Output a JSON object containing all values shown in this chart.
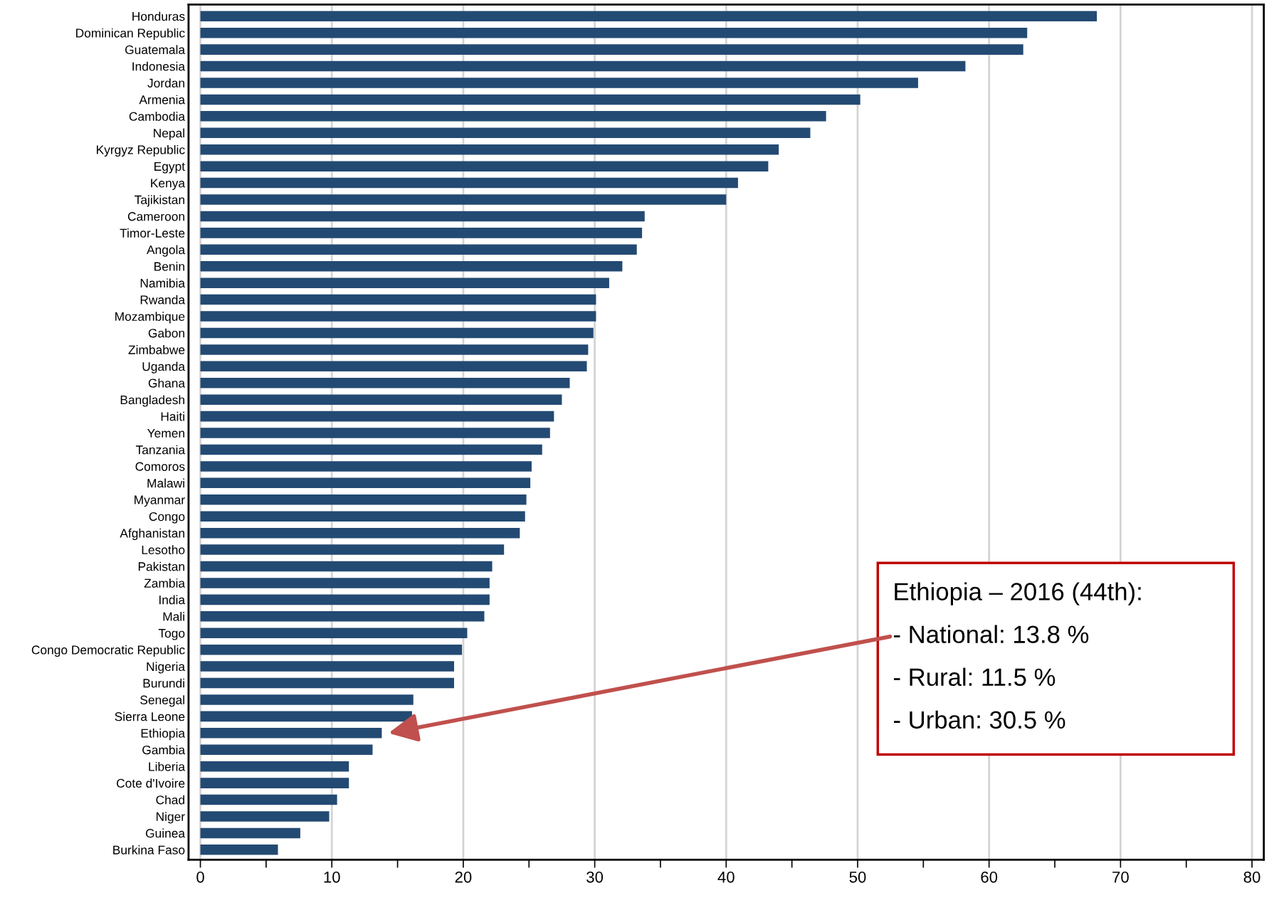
{
  "chart_data": {
    "type": "bar",
    "orientation": "horizontal",
    "categories": [
      "Honduras",
      "Dominican Republic",
      "Guatemala",
      "Indonesia",
      "Jordan",
      "Armenia",
      "Cambodia",
      "Nepal",
      "Kyrgyz Republic",
      "Egypt",
      "Kenya",
      "Tajikistan",
      "Cameroon",
      "Timor-Leste",
      "Angola",
      "Benin",
      "Namibia",
      "Rwanda",
      "Mozambique",
      "Gabon",
      "Zimbabwe",
      "Uganda",
      "Ghana",
      "Bangladesh",
      "Haiti",
      "Yemen",
      "Tanzania",
      "Comoros",
      "Malawi",
      "Myanmar",
      "Congo",
      "Afghanistan",
      "Lesotho",
      "Pakistan",
      "Zambia",
      "India",
      "Mali",
      "Togo",
      "Congo Democratic Republic",
      "Nigeria",
      "Burundi",
      "Senegal",
      "Sierra Leone",
      "Ethiopia",
      "Gambia",
      "Liberia",
      "Cote d'Ivoire",
      "Chad",
      "Niger",
      "Guinea",
      "Burkina Faso"
    ],
    "values": [
      68.2,
      62.9,
      62.6,
      58.2,
      54.6,
      50.2,
      47.6,
      46.4,
      44.0,
      43.2,
      40.9,
      40.0,
      33.8,
      33.6,
      33.2,
      32.1,
      31.1,
      30.1,
      30.1,
      29.9,
      29.5,
      29.4,
      28.1,
      27.5,
      26.9,
      26.6,
      26.0,
      25.2,
      25.1,
      24.8,
      24.7,
      24.3,
      23.1,
      22.2,
      22.0,
      22.0,
      21.6,
      20.3,
      19.9,
      19.3,
      19.3,
      16.2,
      16.1,
      13.8,
      13.1,
      11.3,
      11.3,
      10.4,
      9.8,
      7.6,
      5.9
    ],
    "color": "#234a73",
    "xlim": [
      -0.9,
      80.9
    ],
    "xticks": [
      0,
      {
        "value": 5,
        "label": null
      },
      10,
      {
        "value": 15,
        "label": null
      },
      20,
      {
        "value": 25,
        "label": null
      },
      30,
      {
        "value": 35,
        "label": null
      },
      40,
      {
        "value": 45,
        "label": null
      },
      50,
      {
        "value": 55,
        "label": null
      },
      60,
      {
        "value": 65,
        "label": null
      },
      70,
      {
        "value": 75,
        "label": null
      },
      80
    ],
    "grid": "x",
    "annotations": [
      "Ethiopia – 2016 (44th):",
      "- National: 13.8 %",
      "- Rural: 11.5 %",
      "- Urban: 30.5 %"
    ]
  }
}
